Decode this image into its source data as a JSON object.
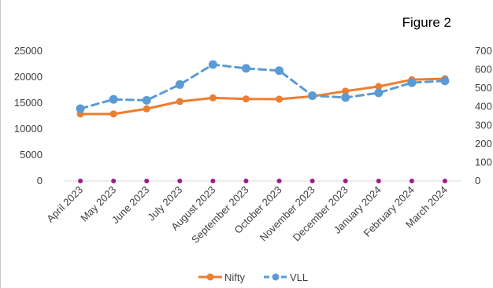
{
  "chart_data": {
    "type": "line",
    "title": "Figure 2",
    "categories": [
      "April 2023",
      "May 2023",
      "June 2023",
      "July 2023",
      "August 2023",
      "September 2023",
      "October 2023",
      "November 2023",
      "December 2023",
      "January 2024",
      "February 2024",
      "March 2024"
    ],
    "series": [
      {
        "name": "Nifty",
        "axis": "left",
        "color": "#ed7d31",
        "style": "solid",
        "values": [
          12900,
          12900,
          13900,
          15300,
          16000,
          15800,
          15750,
          16300,
          17300,
          18200,
          19500,
          19700
        ]
      },
      {
        "name": "VLL",
        "axis": "right",
        "color": "#5b9bd5",
        "style": "dashed",
        "values": [
          390,
          440,
          435,
          520,
          628,
          607,
          595,
          460,
          450,
          475,
          530,
          540
        ]
      }
    ],
    "left_axis": {
      "ylim": [
        0,
        25000
      ],
      "ticks": [
        "0",
        "5000",
        "10000",
        "15000",
        "20000",
        "25000"
      ]
    },
    "right_axis": {
      "ylim": [
        0,
        700
      ],
      "ticks": [
        "0",
        "100",
        "200",
        "300",
        "400",
        "500",
        "600",
        "700"
      ]
    },
    "baseline_markers_color": "#9c1c8c",
    "grid": false,
    "legend_position": "bottom"
  }
}
